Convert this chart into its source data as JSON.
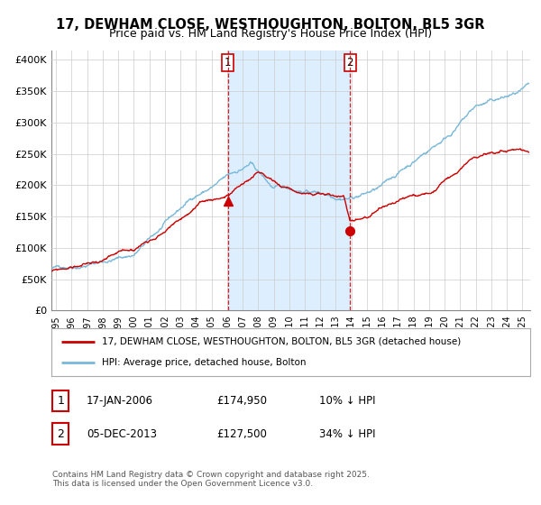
{
  "title": "17, DEWHAM CLOSE, WESTHOUGHTON, BOLTON, BL5 3GR",
  "subtitle": "Price paid vs. HM Land Registry's House Price Index (HPI)",
  "title_fontsize": 10.5,
  "subtitle_fontsize": 9,
  "ylabel_ticks": [
    "£0",
    "£50K",
    "£100K",
    "£150K",
    "£200K",
    "£250K",
    "£300K",
    "£350K",
    "£400K"
  ],
  "ytick_vals": [
    0,
    50000,
    100000,
    150000,
    200000,
    250000,
    300000,
    350000,
    400000
  ],
  "ylim": [
    0,
    415000
  ],
  "xlim_start": 1994.7,
  "xlim_end": 2025.5,
  "hpi_color": "#7ab8d9",
  "price_color": "#cc0000",
  "vline1_x": 2006.05,
  "vline2_x": 2013.92,
  "shade_color": "#ddeeff",
  "marker1_x": 2006.05,
  "marker1_y": 174950,
  "marker2_x": 2013.92,
  "marker2_y": 127500,
  "legend_price": "17, DEWHAM CLOSE, WESTHOUGHTON, BOLTON, BL5 3GR (detached house)",
  "legend_hpi": "HPI: Average price, detached house, Bolton",
  "table_row1": [
    "1",
    "17-JAN-2006",
    "£174,950",
    "10% ↓ HPI"
  ],
  "table_row2": [
    "2",
    "05-DEC-2013",
    "£127,500",
    "34% ↓ HPI"
  ],
  "footnote": "Contains HM Land Registry data © Crown copyright and database right 2025.\nThis data is licensed under the Open Government Licence v3.0.",
  "background_color": "#ffffff",
  "grid_color": "#cccccc"
}
